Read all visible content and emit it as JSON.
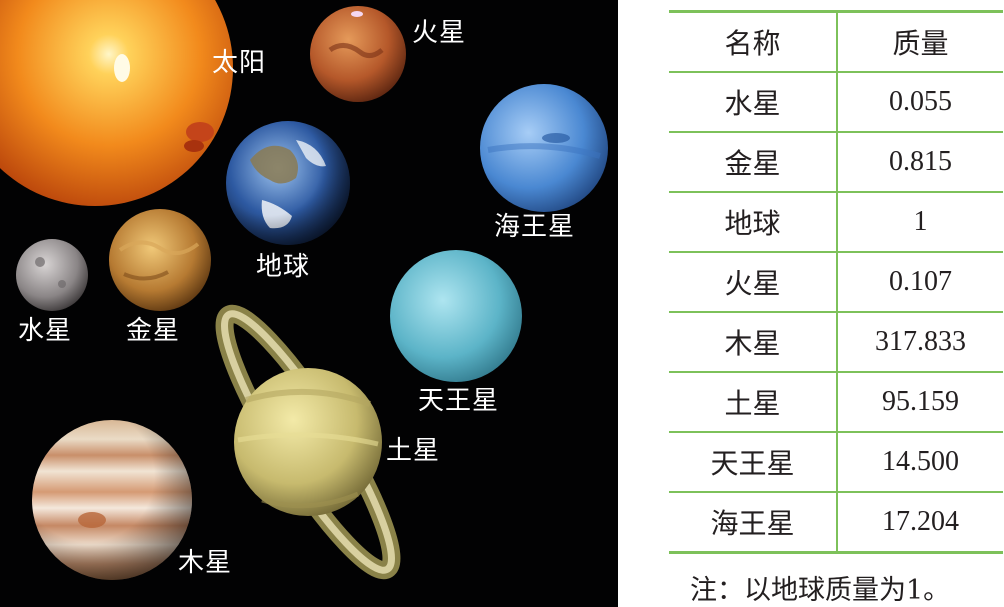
{
  "figure": {
    "labels": {
      "sun": "太阳",
      "mars": "火星",
      "earth": "地球",
      "neptune": "海王星",
      "mercury": "水星",
      "venus": "金星",
      "uranus": "天王星",
      "saturn": "土星",
      "jupiter": "木星"
    }
  },
  "table": {
    "headers": [
      "名称",
      "质量"
    ],
    "rows": [
      [
        "水星",
        "0.055"
      ],
      [
        "金星",
        "0.815"
      ],
      [
        "地球",
        "1"
      ],
      [
        "火星",
        "0.107"
      ],
      [
        "木星",
        "317.833"
      ],
      [
        "土星",
        "95.159"
      ],
      [
        "天王星",
        "14.500"
      ],
      [
        "海王星",
        "17.204"
      ]
    ]
  },
  "note": "注：以地球质量为1。"
}
